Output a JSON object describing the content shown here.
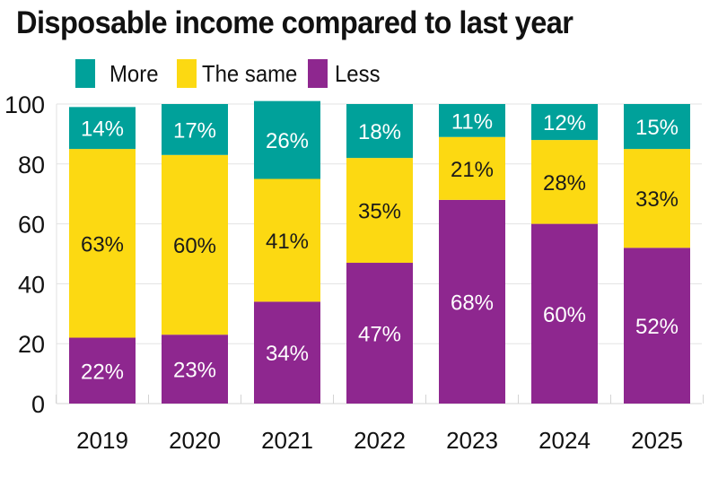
{
  "chart_data": {
    "type": "bar",
    "stacked": true,
    "title": "Disposable income compared to last year",
    "xlabel": "",
    "ylabel": "",
    "ylim": [
      0,
      100
    ],
    "yticks": [
      0,
      20,
      40,
      60,
      80,
      100
    ],
    "grid": true,
    "legend_position": "top-left",
    "categories": [
      "2019",
      "2020",
      "2021",
      "2022",
      "2023",
      "2024",
      "2025"
    ],
    "series": [
      {
        "name": "Less",
        "color": "#8e278f",
        "label_color": "#ffffff",
        "values": [
          22,
          23,
          34,
          47,
          68,
          60,
          52
        ]
      },
      {
        "name": "The same",
        "color": "#fcd912",
        "label_color": "#1a1a1a",
        "values": [
          63,
          60,
          41,
          35,
          21,
          28,
          33
        ]
      },
      {
        "name": "More",
        "color": "#00a19a",
        "label_color": "#ffffff",
        "values": [
          14,
          17,
          26,
          18,
          11,
          12,
          15
        ]
      }
    ],
    "legend": [
      {
        "name": "More",
        "color": "#00a19a"
      },
      {
        "name": "The same",
        "color": "#fcd912"
      },
      {
        "name": "Less",
        "color": "#8e278f"
      }
    ],
    "value_suffix": "%"
  }
}
